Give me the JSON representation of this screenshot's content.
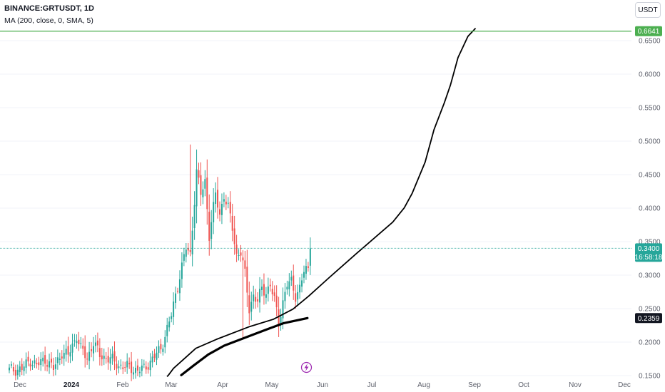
{
  "header": {
    "title": "BINANCE:GRTUSDT, 1D",
    "indicator": "MA (200, close, 0, SMA, 5)"
  },
  "currency_button": "USDT",
  "colors": {
    "up": "#26a69a",
    "down": "#ef5350",
    "drawing": "#000000",
    "top_line": "#4caf50",
    "price_line": "#26a69a"
  },
  "icons": {
    "alert": "lightning-icon"
  },
  "chart_data": {
    "type": "candlestick",
    "ylim": [
      0.15,
      0.67
    ],
    "y_ticks": [
      "0.6500",
      "0.6000",
      "0.5500",
      "0.5000",
      "0.4500",
      "0.4000",
      "0.3500",
      "0.3000",
      "0.2500",
      "0.2000",
      "0.1500"
    ],
    "x_ticks": [
      "Dec",
      "2024",
      "Feb",
      "Mar",
      "Apr",
      "May",
      "Jun",
      "Jul",
      "Aug",
      "Sep",
      "Oct",
      "Nov",
      "Dec"
    ],
    "badges": {
      "top_level": "0.6641",
      "last_price": "0.3400",
      "countdown": "16:58:18",
      "drawing_end": "0.2359"
    },
    "price_anchors": [
      [
        0,
        0.158
      ],
      [
        6,
        0.16
      ],
      [
        10,
        0.173
      ],
      [
        13,
        0.165
      ],
      [
        17,
        0.175
      ],
      [
        21,
        0.16
      ],
      [
        25,
        0.185
      ],
      [
        28,
        0.18
      ],
      [
        32,
        0.21
      ],
      [
        34,
        0.19
      ],
      [
        37,
        0.175
      ],
      [
        40,
        0.2
      ],
      [
        43,
        0.18
      ],
      [
        48,
        0.175
      ],
      [
        52,
        0.165
      ],
      [
        56,
        0.163
      ],
      [
        61,
        0.158
      ],
      [
        64,
        0.16
      ],
      [
        68,
        0.175
      ],
      [
        72,
        0.19
      ],
      [
        77,
        0.24
      ],
      [
        81,
        0.3
      ],
      [
        84,
        0.34
      ],
      [
        86,
        0.33
      ],
      [
        89,
        0.455
      ],
      [
        91,
        0.42
      ],
      [
        93,
        0.44
      ],
      [
        95,
        0.36
      ],
      [
        98,
        0.42
      ],
      [
        100,
        0.39
      ],
      [
        102,
        0.42
      ],
      [
        104,
        0.4
      ],
      [
        106,
        0.37
      ],
      [
        108,
        0.33
      ],
      [
        110,
        0.335
      ],
      [
        112,
        0.3
      ],
      [
        114,
        0.25
      ],
      [
        116,
        0.27
      ],
      [
        118,
        0.26
      ],
      [
        120,
        0.28
      ],
      [
        122,
        0.275
      ],
      [
        124,
        0.285
      ],
      [
        126,
        0.262
      ],
      [
        128,
        0.23
      ],
      [
        130,
        0.26
      ],
      [
        132,
        0.285
      ],
      [
        134,
        0.29
      ],
      [
        136,
        0.27
      ],
      [
        138,
        0.28
      ],
      [
        140,
        0.305
      ],
      [
        142,
        0.31
      ],
      [
        143,
        0.34
      ]
    ],
    "wick_extremes": [
      [
        86,
        0.495
      ],
      [
        111,
        0.205
      ],
      [
        143,
        0.355
      ]
    ],
    "trend_thin": [
      [
        234,
        0.1486
      ],
      [
        235.7,
        0.1502
      ],
      [
        243.2,
        0.1608
      ],
      [
        274.5,
        0.1908
      ],
      [
        303.3,
        0.2041
      ],
      [
        348.6,
        0.2227
      ],
      [
        383.4,
        0.2342
      ],
      [
        410.6,
        0.2493
      ],
      [
        432.8,
        0.2688
      ],
      [
        460.5,
        0.2955
      ],
      [
        500.3,
        0.3329
      ],
      [
        550.4,
        0.3791
      ],
      [
        566.6,
        0.4005
      ],
      [
        577.5,
        0.4217
      ],
      [
        595.8,
        0.4686
      ],
      [
        608.2,
        0.5169
      ],
      [
        622.7,
        0.5571
      ],
      [
        631.3,
        0.5837
      ],
      [
        641.9,
        0.6247
      ],
      [
        655.8,
        0.6564
      ],
      [
        666.5,
        0.6685
      ]
    ],
    "trend_thick": [
      [
        254,
        0.1507
      ],
      [
        270.9,
        0.1647
      ],
      [
        292,
        0.1816
      ],
      [
        314.1,
        0.1947
      ],
      [
        337.3,
        0.2041
      ],
      [
        358.6,
        0.2128
      ],
      [
        376.4,
        0.2199
      ],
      [
        397.6,
        0.2283
      ],
      [
        430.9,
        0.2359
      ]
    ]
  }
}
